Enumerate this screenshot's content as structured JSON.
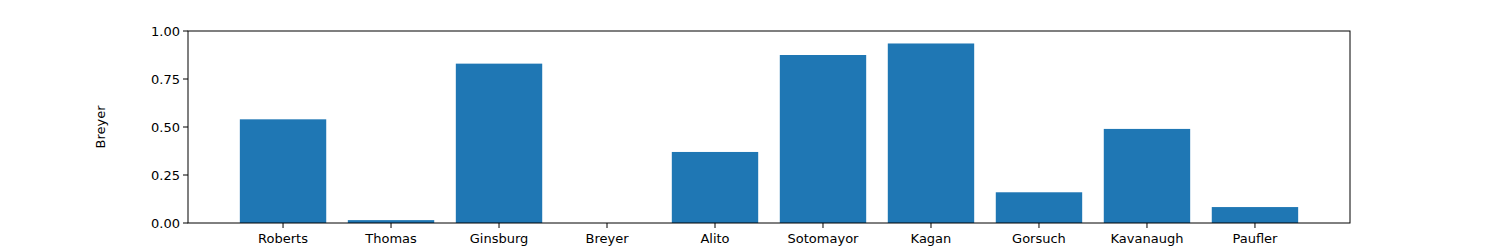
{
  "chart_data": {
    "type": "bar",
    "ylabel": "Breyer",
    "categories": [
      "Roberts",
      "Thomas",
      "Ginsburg",
      "Breyer",
      "Alito",
      "Sotomayor",
      "Kagan",
      "Gorsuch",
      "Kavanaugh",
      "Paufler"
    ],
    "values": [
      0.54,
      0.015,
      0.83,
      0,
      0.37,
      0.875,
      0.935,
      0.16,
      0.49,
      0.083
    ],
    "color": "#1f77b4",
    "ylim": [
      0,
      1
    ],
    "yticks": [
      {
        "value": 0,
        "label": "0.00"
      },
      {
        "value": 0.25,
        "label": "0.25"
      },
      {
        "value": 0.5,
        "label": "0.50"
      },
      {
        "value": 0.75,
        "label": "0.75"
      },
      {
        "value": 1,
        "label": "1.00"
      }
    ]
  }
}
